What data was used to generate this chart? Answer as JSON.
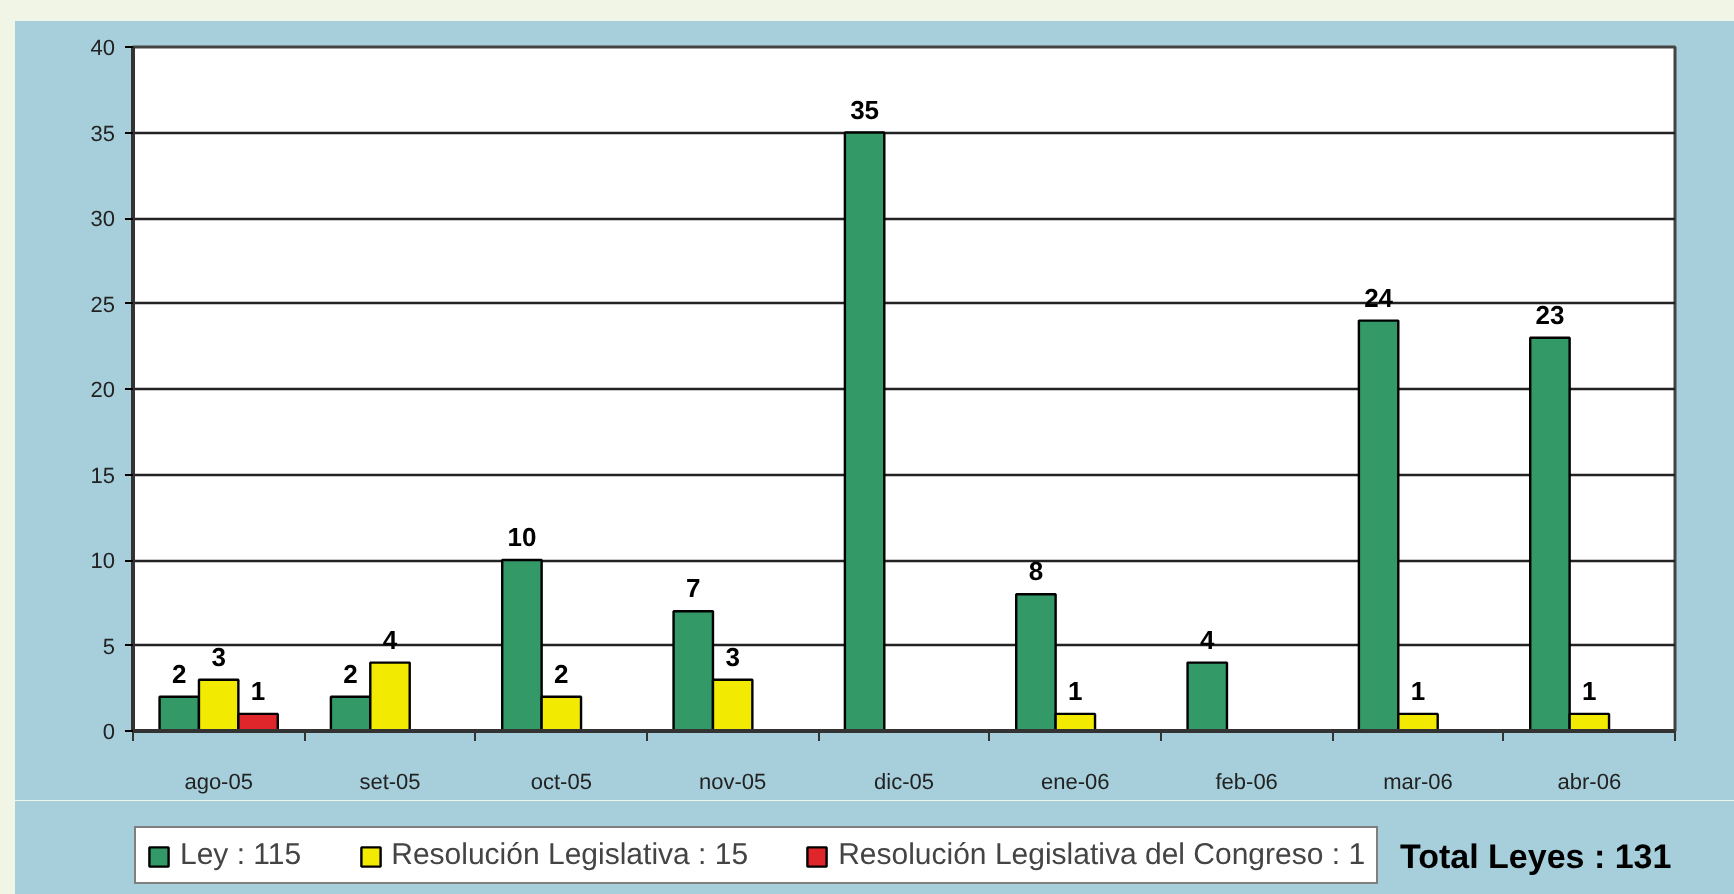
{
  "chart_data": {
    "type": "bar",
    "categories": [
      "ago-05",
      "set-05",
      "oct-05",
      "nov-05",
      "dic-05",
      "ene-06",
      "feb-06",
      "mar-06",
      "abr-06"
    ],
    "series": [
      {
        "name": "Ley : 115",
        "color": "#339966",
        "values": [
          2,
          2,
          10,
          7,
          35,
          8,
          4,
          24,
          23
        ]
      },
      {
        "name": "Resolución Legislativa : 15",
        "color": "#f2ea00",
        "values": [
          3,
          4,
          2,
          3,
          null,
          1,
          null,
          1,
          1
        ]
      },
      {
        "name": "Resolución Legislativa del Congreso : 1",
        "color": "#e0262b",
        "values": [
          1,
          null,
          null,
          null,
          null,
          null,
          null,
          null,
          null
        ]
      }
    ],
    "ylim": [
      0,
      40
    ],
    "yticks": [
      0,
      5,
      10,
      15,
      20,
      25,
      30,
      35,
      40
    ],
    "grid": "y",
    "legend": "bottom",
    "data_labels": true,
    "annotations": [
      "Total Leyes : 131"
    ]
  }
}
